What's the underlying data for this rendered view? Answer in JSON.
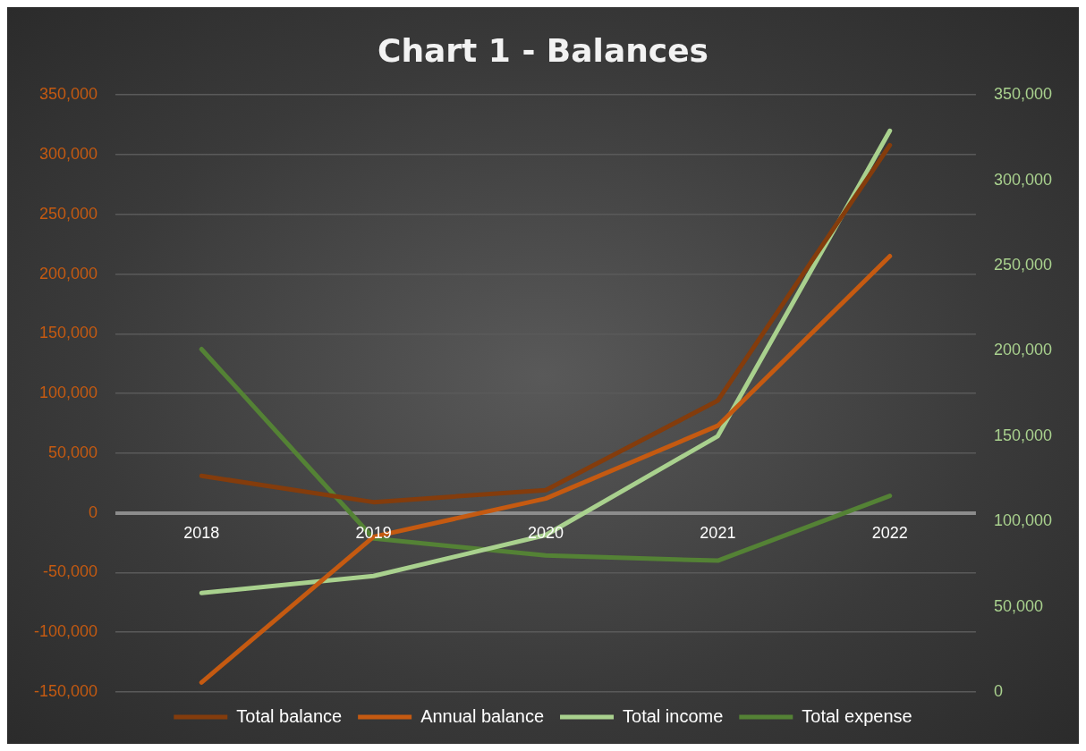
{
  "chart_data": {
    "type": "line",
    "title": "Chart 1 - Balances",
    "categories": [
      "2018",
      "2019",
      "2020",
      "2021",
      "2022"
    ],
    "series": [
      {
        "name": "Total balance",
        "color": "#843c0c",
        "values": [
          31000,
          9000,
          19000,
          94000,
          308000
        ]
      },
      {
        "name": "Annual balance",
        "color": "#c55a11",
        "values": [
          -142000,
          -20000,
          12000,
          73000,
          215000
        ]
      },
      {
        "name": "Total income",
        "color": "#a9d18e",
        "axis": "y2",
        "values": [
          58000,
          68000,
          92000,
          150000,
          329000
        ]
      },
      {
        "name": "Total expense",
        "color": "#548235",
        "axis": "y2",
        "values": [
          201000,
          90000,
          80000,
          77000,
          115000
        ]
      }
    ],
    "ylim": [
      -150000,
      350000
    ],
    "yticks": [
      {
        "value": -150000,
        "label": "-150,000"
      },
      {
        "value": -100000,
        "label": "-100,000"
      },
      {
        "value": -50000,
        "label": "-50,000"
      },
      0,
      {
        "value": 50000,
        "label": "50,000"
      },
      {
        "value": 100000,
        "label": "100,000"
      },
      {
        "value": 150000,
        "label": "150,000"
      },
      {
        "value": 200000,
        "label": "200,000"
      },
      {
        "value": 250000,
        "label": "250,000"
      },
      {
        "value": 300000,
        "label": "300,000"
      },
      {
        "value": 350000,
        "label": "350,000"
      }
    ],
    "y2lim": [
      0,
      350000
    ],
    "y2ticks": [
      0,
      {
        "value": 50000,
        "label": "50,000"
      },
      {
        "value": 100000,
        "label": "100,000"
      },
      {
        "value": 150000,
        "label": "150,000"
      },
      {
        "value": 200000,
        "label": "200,000"
      },
      {
        "value": 250000,
        "label": "250,000"
      },
      {
        "value": 300000,
        "label": "300,000"
      },
      {
        "value": 350000,
        "label": "350,000"
      }
    ],
    "grid": "y",
    "legend": "bottom",
    "marker": "none"
  }
}
